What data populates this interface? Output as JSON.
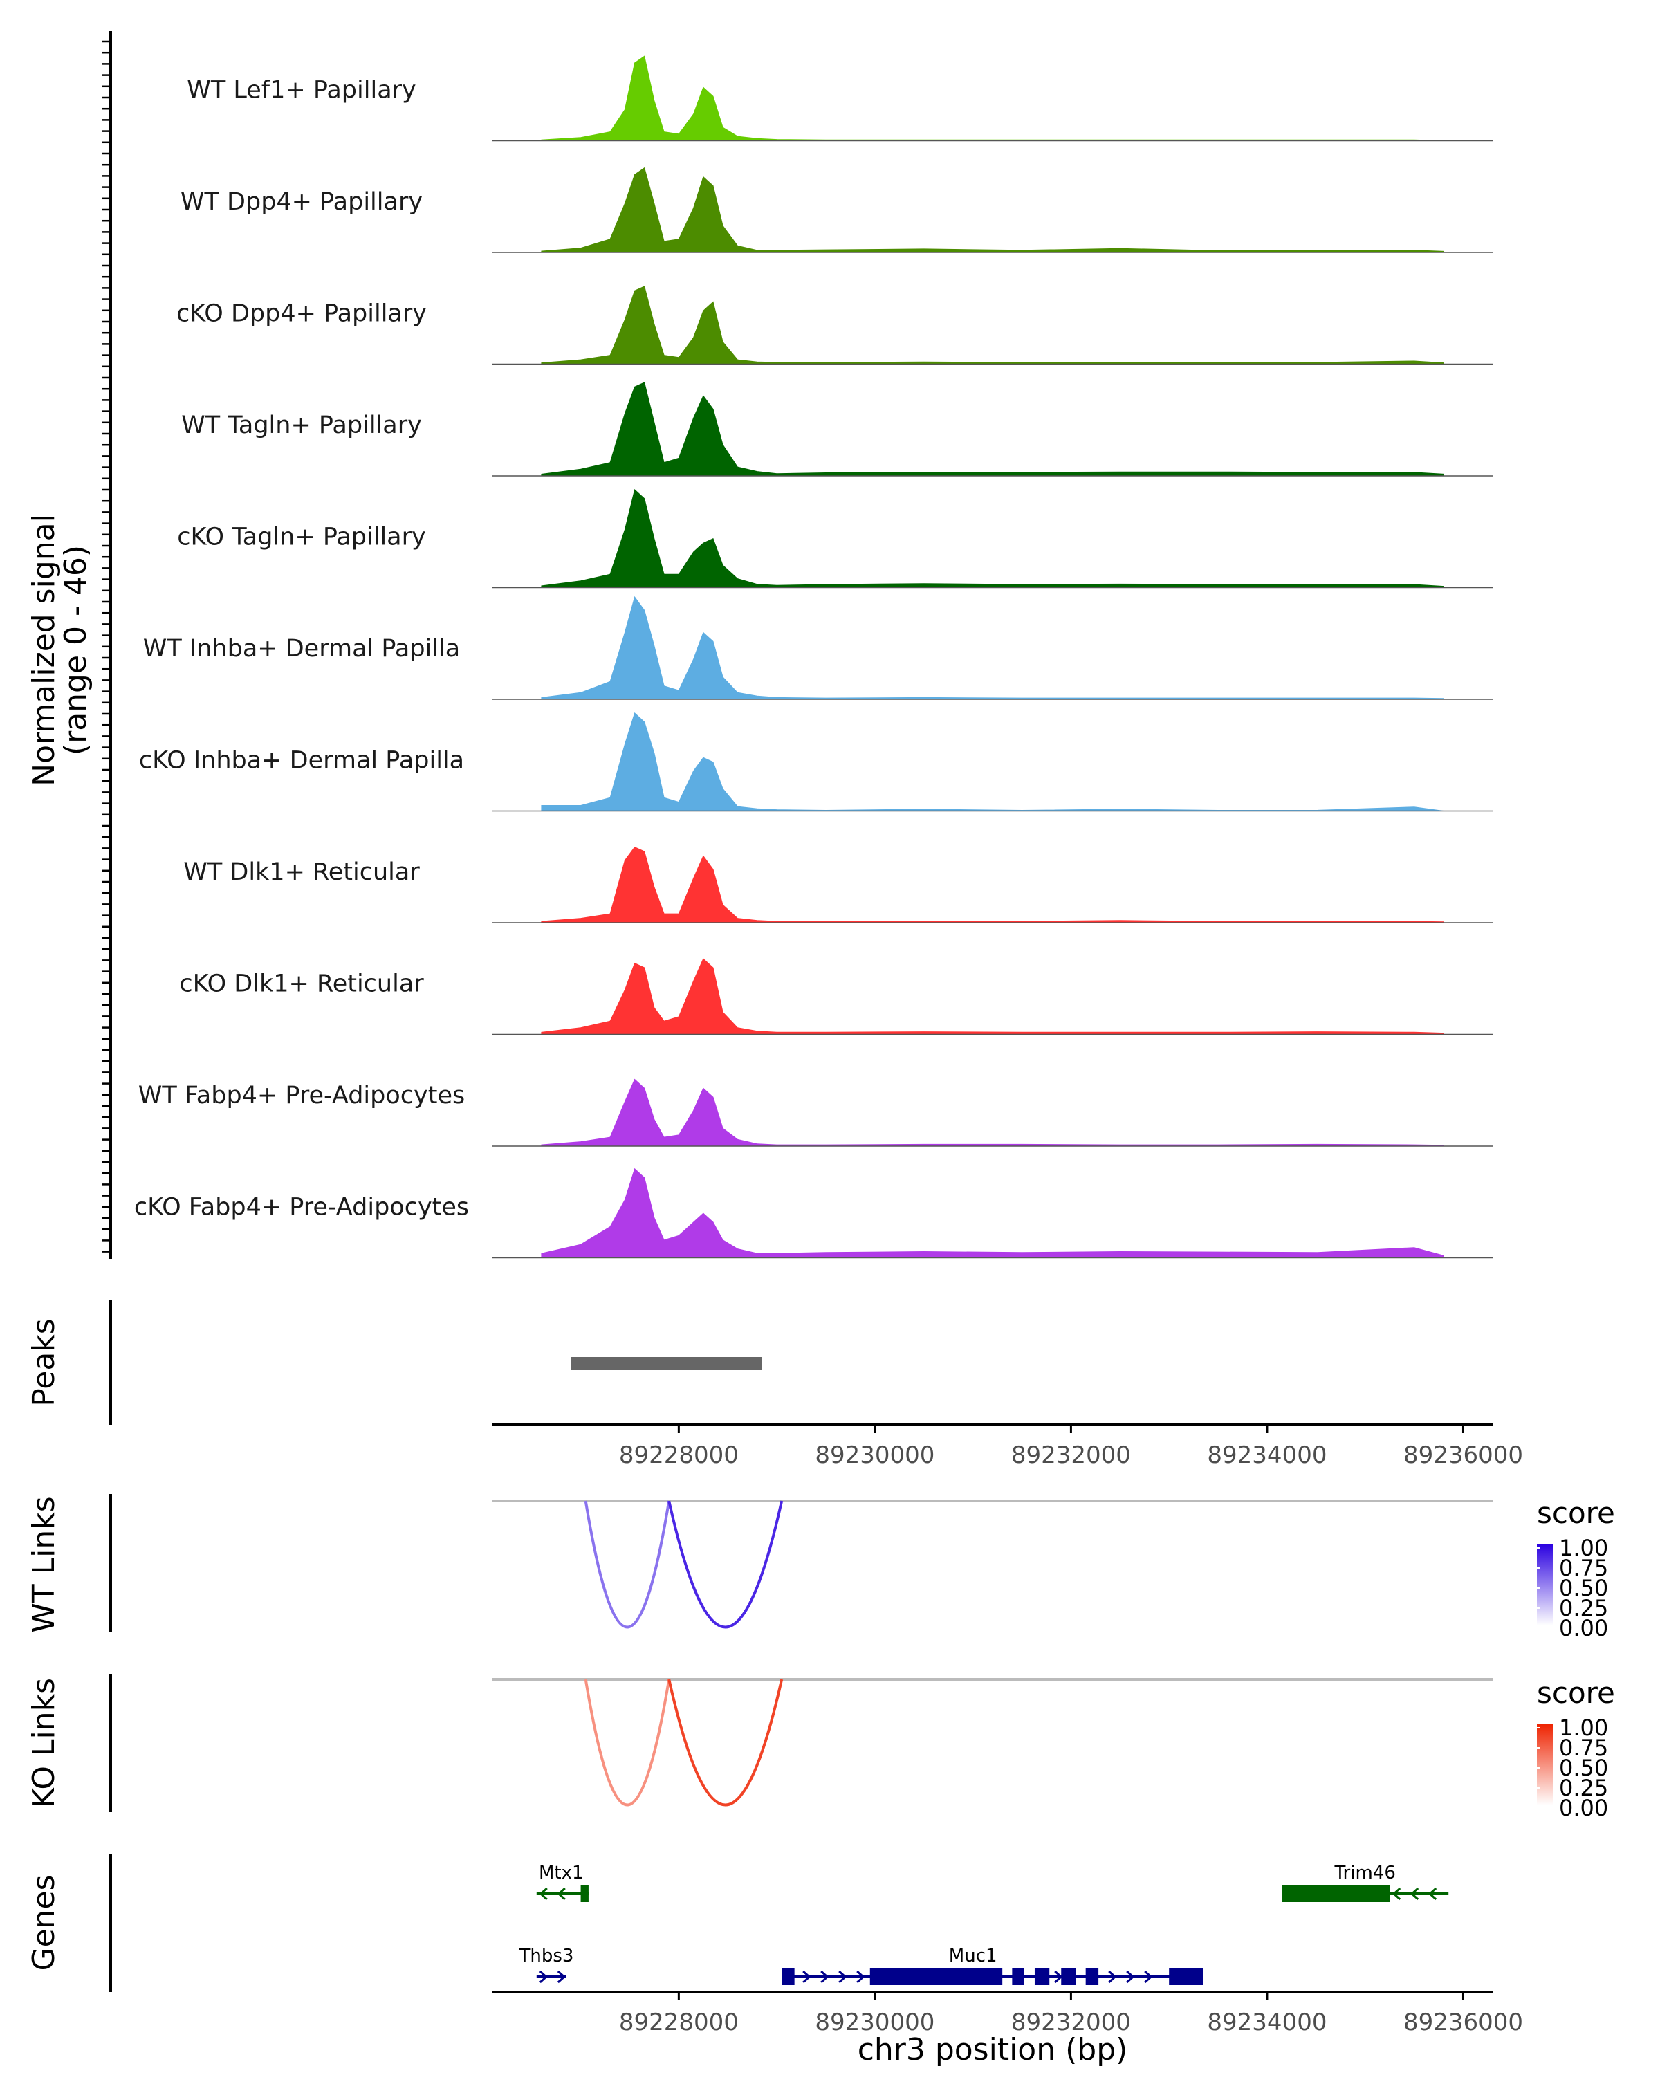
{
  "chart_data": {
    "type": "genome-browser-coverage",
    "genomic_range": {
      "chrom": "chr3",
      "xlim": [
        89226100,
        89236300
      ],
      "ticks": [
        89228000,
        89230000,
        89232000,
        89234000,
        89236000
      ],
      "tick_labels": [
        "89228000",
        "89230000",
        "89232000",
        "89234000",
        "89236000"
      ],
      "xlabel": "chr3 position (bp)"
    },
    "coverage": {
      "ylabel_line1": "Normalized signal",
      "ylabel_line2": "(range 0 - 46)",
      "ylim": [
        0,
        46
      ],
      "peak_template_x": [
        89226600,
        89227000,
        89227300,
        89227450,
        89227550,
        89227650,
        89227750,
        89227850,
        89228000,
        89228150,
        89228250,
        89228350,
        89228450,
        89228600,
        89228800,
        89229000,
        89229500,
        89230500,
        89231500,
        89232500,
        89233500,
        89234500,
        89235500,
        89235800
      ],
      "tracks": [
        {
          "label": "WT Lef1+ Papillary",
          "color": "#66CC00",
          "values": [
            0.4,
            1.5,
            4,
            14,
            35,
            38,
            18,
            4,
            3,
            12,
            24,
            20,
            6,
            2,
            1,
            0.6,
            0.4,
            0.4,
            0.4,
            0.4,
            0.4,
            0.4,
            0.4,
            0
          ]
        },
        {
          "label": "WT Dpp4+ Papillary",
          "color": "#4C8C00",
          "values": [
            0.6,
            2,
            6,
            22,
            35,
            38,
            22,
            5,
            6,
            20,
            34,
            30,
            12,
            3,
            1,
            1,
            1.2,
            1.6,
            1,
            1.8,
            0.8,
            0.8,
            1,
            0.5
          ]
        },
        {
          "label": "cKO Dpp4+ Papillary",
          "color": "#4C8C00",
          "values": [
            0.6,
            2,
            4,
            20,
            33,
            35,
            18,
            4,
            3,
            12,
            24,
            28,
            10,
            2,
            1,
            0.8,
            0.8,
            1,
            0.8,
            0.8,
            0.8,
            0.8,
            1.4,
            0.6
          ]
        },
        {
          "label": "WT Tagln+ Papillary",
          "color": "#006400",
          "values": [
            0.8,
            3,
            6,
            28,
            40,
            42,
            24,
            6,
            8,
            26,
            36,
            30,
            14,
            4,
            2,
            1,
            1.4,
            1.6,
            1.6,
            1.8,
            1.8,
            1.6,
            1.6,
            0.8
          ]
        },
        {
          "label": "cKO Tagln+ Papillary",
          "color": "#006400",
          "values": [
            0.8,
            3,
            6,
            26,
            44,
            40,
            22,
            6,
            6,
            16,
            20,
            22,
            10,
            4,
            1.5,
            1,
            1.4,
            1.8,
            1.4,
            1.6,
            1.4,
            1.4,
            1.4,
            0.6
          ]
        },
        {
          "label": "WT Inhba+ Dermal Papilla",
          "color": "#5DADE2",
          "values": [
            0.8,
            3,
            8,
            30,
            46,
            40,
            24,
            6,
            4,
            18,
            30,
            26,
            10,
            3,
            1.5,
            0.8,
            0.6,
            0.8,
            0.6,
            0.6,
            0.6,
            0.6,
            0.6,
            0.4
          ]
        },
        {
          "label": "cKO Inhba+ Dermal Papilla",
          "color": "#5DADE2",
          "values": [
            2.5,
            2.5,
            6,
            30,
            44,
            40,
            26,
            6,
            4,
            18,
            24,
            22,
            10,
            2,
            1,
            0.6,
            0.3,
            0.8,
            0.3,
            0.8,
            0.3,
            0.3,
            1.8,
            0
          ]
        },
        {
          "label": "WT Dlk1+ Reticular",
          "color": "#FF3333",
          "values": [
            0.6,
            2,
            4,
            28,
            34,
            32,
            16,
            4,
            4,
            20,
            30,
            24,
            8,
            2,
            1,
            0.6,
            0.6,
            0.6,
            0.6,
            1,
            0.6,
            0.6,
            0.6,
            0.4
          ]
        },
        {
          "label": "cKO Dlk1+ Reticular",
          "color": "#FF3333",
          "values": [
            1,
            3,
            6,
            20,
            32,
            30,
            12,
            6,
            8,
            24,
            34,
            30,
            10,
            3,
            1.5,
            1,
            1,
            1.2,
            1,
            1,
            1,
            1.2,
            1,
            0.6
          ]
        },
        {
          "label": "WT Fabp4+ Pre-Adipocytes",
          "color": "#B03BE8",
          "values": [
            0.6,
            2,
            4,
            20,
            30,
            26,
            12,
            4,
            5,
            16,
            26,
            22,
            8,
            3,
            1,
            0.6,
            0.6,
            0.8,
            0.8,
            0.6,
            0.6,
            0.8,
            0.6,
            0.4
          ]
        },
        {
          "label": "cKO Fabp4+ Pre-Adipocytes",
          "color": "#B03BE8",
          "values": [
            2,
            6,
            14,
            26,
            40,
            36,
            18,
            8,
            10,
            16,
            20,
            16,
            8,
            4,
            2,
            2,
            2.4,
            2.8,
            2.4,
            2.8,
            2.6,
            2.4,
            4.6,
            1
          ]
        }
      ]
    },
    "peaks": {
      "label": "Peaks",
      "regions": [
        {
          "start": 89226900,
          "end": 89228850
        }
      ]
    },
    "links": [
      {
        "label": "WT Links",
        "legend_title": "score",
        "legend_breaks": [
          "1.00",
          "0.75",
          "0.50",
          "0.25",
          "0.00"
        ],
        "color_low": "#FFFFFF",
        "color_high": "#2A00E0",
        "arcs": [
          {
            "start": 89227050,
            "end": 89227900,
            "score": 0.55
          },
          {
            "start": 89227900,
            "end": 89229050,
            "score": 0.85
          }
        ]
      },
      {
        "label": "KO Links",
        "legend_title": "score",
        "legend_breaks": [
          "1.00",
          "0.75",
          "0.50",
          "0.25",
          "0.00"
        ],
        "color_low": "#FFFFFF",
        "color_high": "#EE2200",
        "arcs": [
          {
            "start": 89227050,
            "end": 89227900,
            "score": 0.5
          },
          {
            "start": 89227900,
            "end": 89229050,
            "score": 0.85
          }
        ]
      }
    ],
    "genes": {
      "label": "Genes",
      "items": [
        {
          "name": "Mtx1",
          "strand": "-",
          "row": 0,
          "color": "#006400",
          "start": 89226550,
          "end": 89227080,
          "exons": [
            [
              89227000,
              89227080
            ]
          ],
          "label_pos": 89226800
        },
        {
          "name": "Trim46",
          "strand": "-",
          "row": 0,
          "color": "#006400",
          "start": 89234150,
          "end": 89235850,
          "exons": [
            [
              89234150,
              89235250
            ]
          ],
          "label_pos": 89235000
        },
        {
          "name": "Thbs3",
          "strand": "+",
          "row": 1,
          "color": "#00008B",
          "start": 89226550,
          "end": 89226850,
          "exons": [],
          "label_pos": 89226650
        },
        {
          "name": "Muc1",
          "strand": "+",
          "row": 1,
          "color": "#00008B",
          "start": 89229050,
          "end": 89233350,
          "exons": [
            [
              89229050,
              89229180
            ],
            [
              89229950,
              89231300
            ],
            [
              89231400,
              89231520
            ],
            [
              89231630,
              89231780
            ],
            [
              89231900,
              89232050
            ],
            [
              89232150,
              89232280
            ],
            [
              89233000,
              89233350
            ]
          ],
          "label_pos": 89231000
        }
      ]
    }
  }
}
